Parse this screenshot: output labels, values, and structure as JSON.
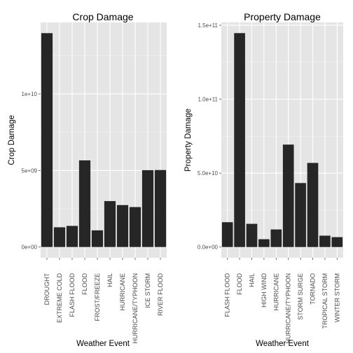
{
  "chart_data": [
    {
      "type": "bar",
      "title": "Crop Damage",
      "xlabel": "Weather Event",
      "ylabel": "Crop Damage",
      "categories": [
        "DROUGHT",
        "EXTREME COLD",
        "FLASH FLOOD",
        "FLOOD",
        "FROST/FREEZE",
        "HAIL",
        "HURRICANE",
        "HURRICANE/TYPHOON",
        "ICE STORM",
        "RIVER FLOOD"
      ],
      "values": [
        13970000000,
        1290000000,
        1380000000,
        5660000000,
        1090000000,
        3000000000,
        2740000000,
        2610000000,
        5020000000,
        5030000000
      ],
      "yticks": [
        0,
        5000000000,
        10000000000
      ],
      "ytick_labels": [
        "0e+00",
        "5e+09",
        "1e+10"
      ],
      "ylim": [
        -700000000,
        14670000000
      ],
      "bar_color": "#262626",
      "panel_color": "#e5e5e5",
      "grid": true
    },
    {
      "type": "bar",
      "title": "Property Damage",
      "xlabel": "Weather Event",
      "ylabel": "Property Damage",
      "categories": [
        "FLASH FLOOD",
        "FLOOD",
        "HAIL",
        "HIGH WIND",
        "HURRICANE",
        "HURRICANE/TYPHOON",
        "STORM SURGE",
        "TORNADO",
        "TROPICAL STORM",
        "WINTER STORM"
      ],
      "values": [
        16800000000,
        144700000000,
        15700000000,
        5300000000,
        11900000000,
        69300000000,
        43300000000,
        56900000000,
        7700000000,
        6700000000
      ],
      "yticks": [
        0,
        50000000000,
        100000000000,
        150000000000
      ],
      "ytick_labels": [
        "0.0e+00",
        "5.0e+10",
        "1.0e+11",
        "1.5e+11"
      ],
      "ylim": [
        -7240000000,
        151940000000
      ],
      "bar_color": "#262626",
      "panel_color": "#e5e5e5",
      "grid": true
    }
  ]
}
